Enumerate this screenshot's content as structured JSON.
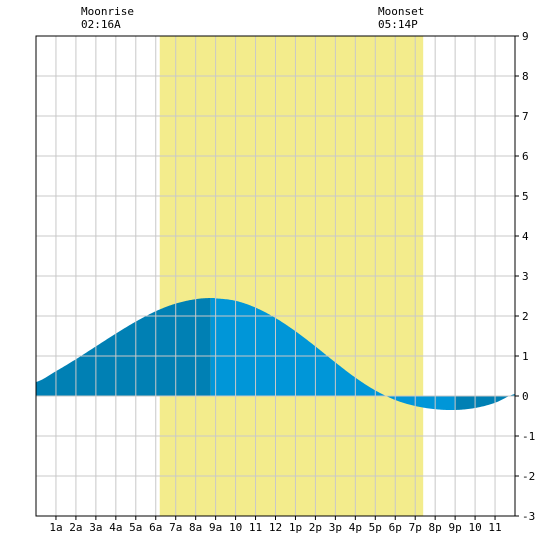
{
  "moonrise": {
    "label": "Moonrise",
    "time": "02:16A"
  },
  "moonset": {
    "label": "Moonset",
    "time": "05:14P"
  },
  "colors": {
    "daylight": "#f3ec8c",
    "tide_dark": "#0080b4",
    "tide_light": "#0096d8",
    "grid": "#c8c8c8",
    "border": "#000000"
  },
  "chart_data": {
    "type": "area",
    "title": "",
    "xlabel": "",
    "ylabel": "",
    "xlim": [
      0,
      24
    ],
    "ylim": [
      -3,
      9
    ],
    "grid": true,
    "x_ticks": [
      {
        "x": 1,
        "label": "1a"
      },
      {
        "x": 2,
        "label": "2a"
      },
      {
        "x": 3,
        "label": "3a"
      },
      {
        "x": 4,
        "label": "4a"
      },
      {
        "x": 5,
        "label": "5a"
      },
      {
        "x": 6,
        "label": "6a"
      },
      {
        "x": 7,
        "label": "7a"
      },
      {
        "x": 8,
        "label": "8a"
      },
      {
        "x": 9,
        "label": "9a"
      },
      {
        "x": 10,
        "label": "10"
      },
      {
        "x": 11,
        "label": "11"
      },
      {
        "x": 12,
        "label": "12"
      },
      {
        "x": 13,
        "label": "1p"
      },
      {
        "x": 14,
        "label": "2p"
      },
      {
        "x": 15,
        "label": "3p"
      },
      {
        "x": 16,
        "label": "4p"
      },
      {
        "x": 17,
        "label": "5p"
      },
      {
        "x": 18,
        "label": "6p"
      },
      {
        "x": 19,
        "label": "7p"
      },
      {
        "x": 20,
        "label": "8p"
      },
      {
        "x": 21,
        "label": "9p"
      },
      {
        "x": 22,
        "label": "10"
      },
      {
        "x": 23,
        "label": "11"
      }
    ],
    "y_ticks": [
      {
        "y": 9,
        "label": "9"
      },
      {
        "y": 8,
        "label": "8"
      },
      {
        "y": 7,
        "label": "7"
      },
      {
        "y": 6,
        "label": "6"
      },
      {
        "y": 5,
        "label": "5"
      },
      {
        "y": 4,
        "label": "4"
      },
      {
        "y": 3,
        "label": "3"
      },
      {
        "y": 2,
        "label": "2"
      },
      {
        "y": 1,
        "label": "1"
      },
      {
        "y": 0,
        "label": "0"
      },
      {
        "y": -1,
        "label": "-1"
      },
      {
        "y": -2,
        "label": "-2"
      },
      {
        "y": -3,
        "label": "-3"
      }
    ],
    "daylight": {
      "start": 6.2,
      "end": 19.4
    },
    "extremes": [
      {
        "x": 8.75,
        "y": 2.45,
        "kind": "high"
      },
      {
        "x": 21.0,
        "y": -0.35,
        "kind": "low"
      }
    ],
    "tide": {
      "x": [
        0,
        1,
        2,
        3,
        4,
        5,
        6,
        7,
        8,
        8.75,
        9,
        10,
        11,
        12,
        13,
        14,
        15,
        16,
        17,
        18,
        19,
        20,
        21,
        22,
        23,
        24
      ],
      "y": [
        0.35,
        0.62,
        0.92,
        1.24,
        1.56,
        1.86,
        2.12,
        2.31,
        2.42,
        2.45,
        2.44,
        2.38,
        2.21,
        1.95,
        1.62,
        1.24,
        0.84,
        0.46,
        0.14,
        -0.1,
        -0.25,
        -0.33,
        -0.35,
        -0.3,
        -0.17,
        0.05
      ]
    }
  }
}
